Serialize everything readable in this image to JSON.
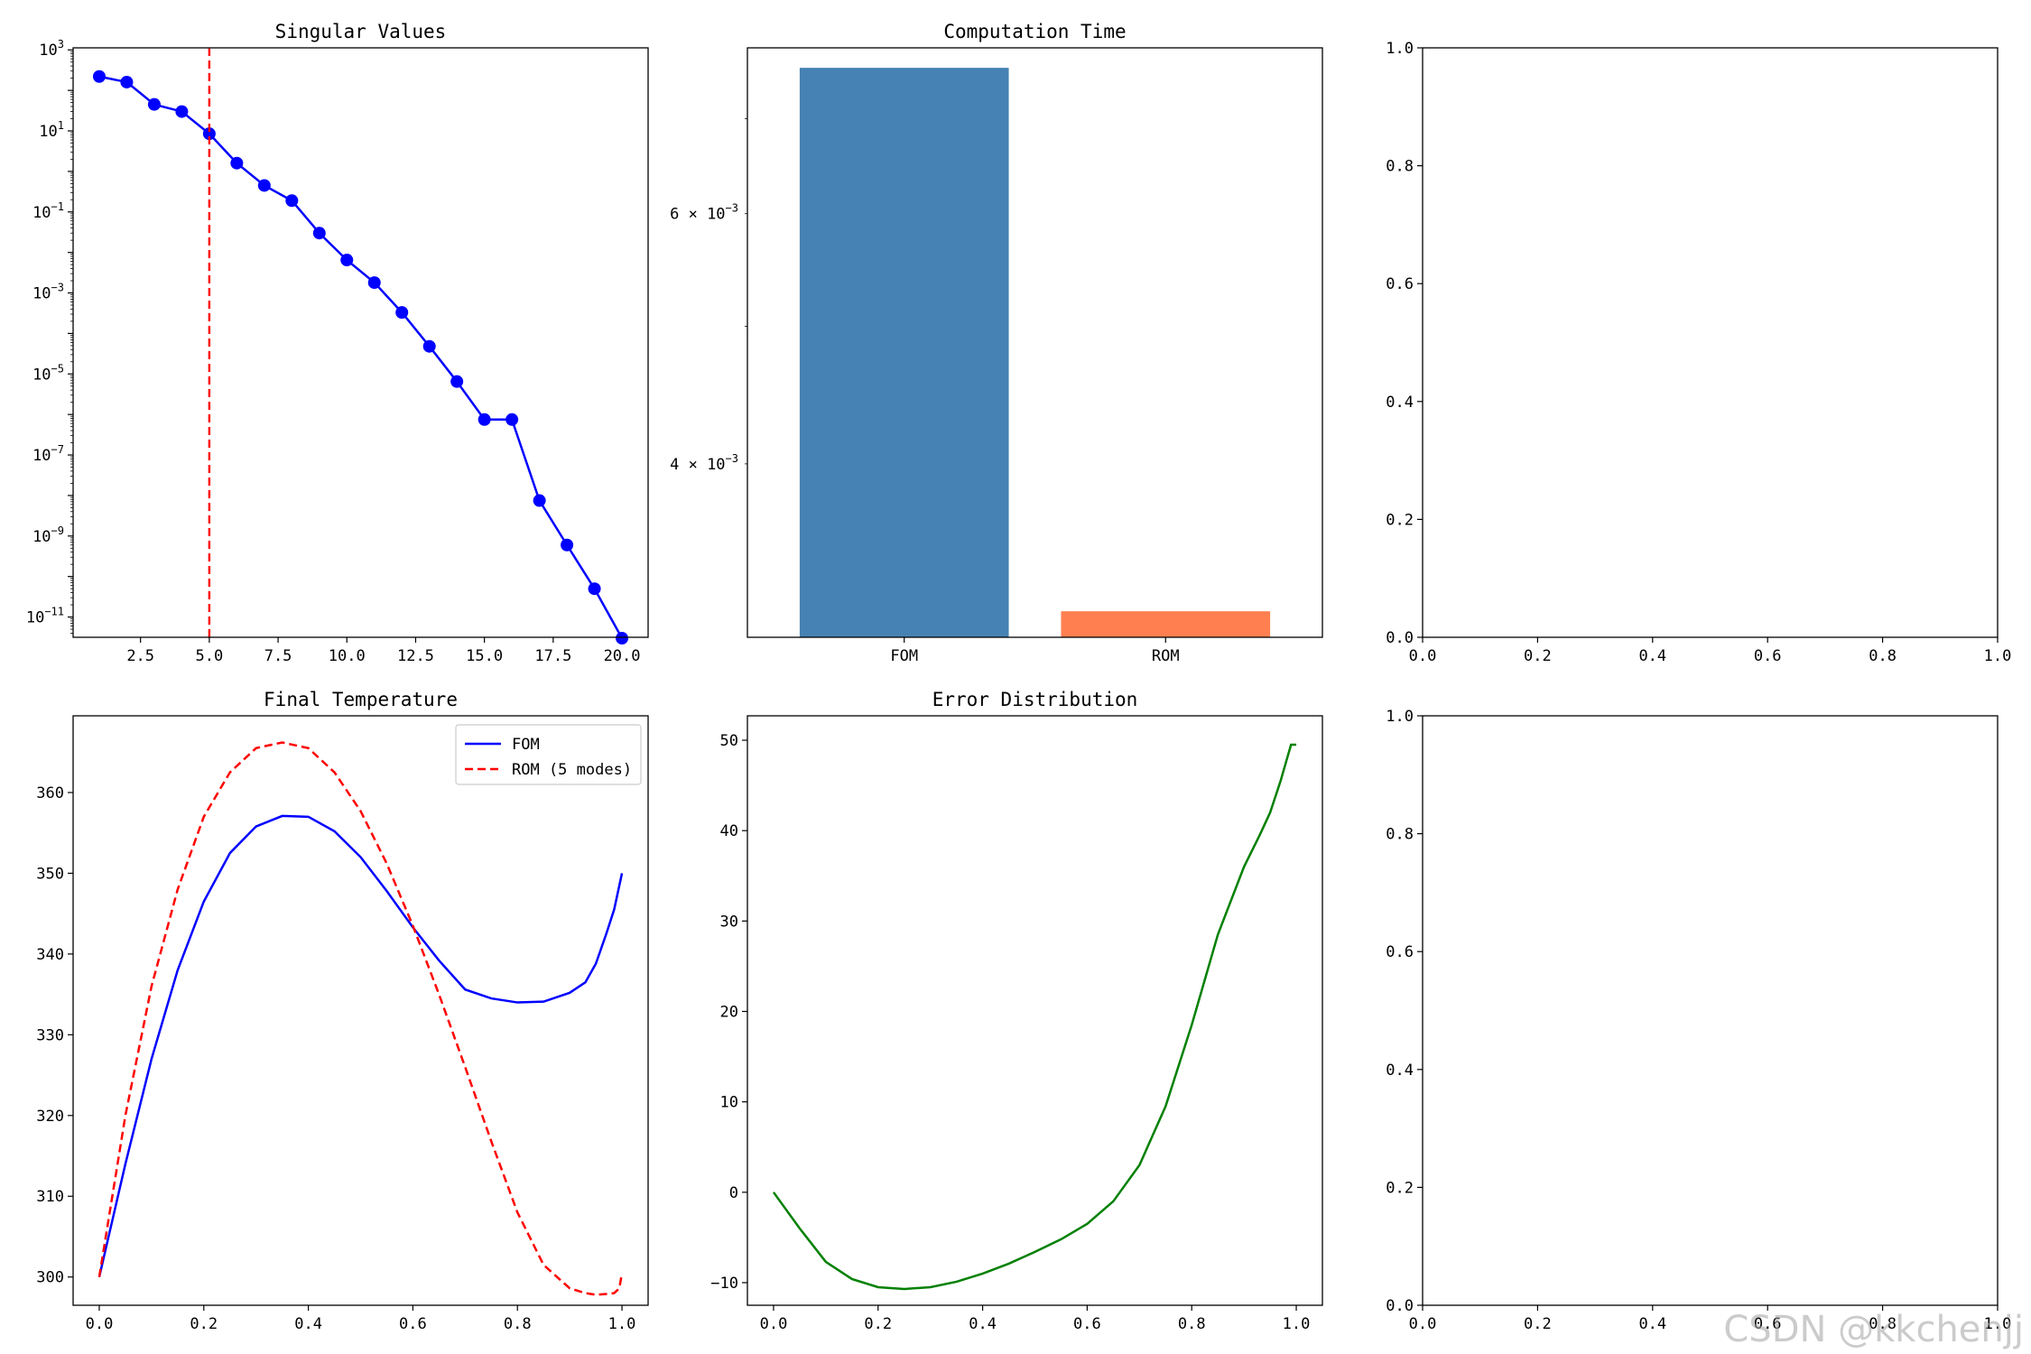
{
  "watermark": "CSDN @kkchenjj",
  "chart_data": [
    {
      "type": "line",
      "title": "Singular Values",
      "xlabel": "",
      "ylabel": "",
      "yscale": "log",
      "x": [
        1,
        2,
        3,
        4,
        5,
        6,
        7,
        8,
        9,
        10,
        11,
        12,
        13,
        14,
        15,
        16,
        17,
        18,
        19,
        20
      ],
      "series": [
        {
          "values": [
            220,
            160,
            45,
            30,
            8.5,
            1.6,
            0.45,
            0.19,
            0.03,
            0.0065,
            0.0018,
            0.00033,
            4.8e-05,
            6.5e-06,
            7.5e-07,
            7.5e-07,
            7.5e-09,
            6e-10,
            5e-11,
            3e-12
          ],
          "color": "#0000ff",
          "marker": "circle"
        }
      ],
      "annotations": [
        {
          "type": "vline",
          "x": 5,
          "color": "#ff0000",
          "style": "dashed"
        }
      ],
      "xlim": [
        0.05,
        20.95
      ],
      "xticks": [
        "2.5",
        "5.0",
        "7.5",
        "10.0",
        "12.5",
        "15.0",
        "17.5",
        "20.0"
      ],
      "ylim_log10": [
        -11.5,
        3.05
      ],
      "yticks": [
        {
          "exp": 3,
          "base": "10",
          "sup": "3"
        },
        {
          "exp": 1,
          "base": "10",
          "sup": "1"
        },
        {
          "exp": -1,
          "base": "10",
          "sup": "−1"
        },
        {
          "exp": -3,
          "base": "10",
          "sup": "−3"
        },
        {
          "exp": -5,
          "base": "10",
          "sup": "−5"
        },
        {
          "exp": -7,
          "base": "10",
          "sup": "−7"
        },
        {
          "exp": -9,
          "base": "10",
          "sup": "−9"
        },
        {
          "exp": -11,
          "base": "10",
          "sup": "−11"
        }
      ],
      "grid": false
    },
    {
      "type": "bar",
      "title": "Computation Time",
      "yscale": "log",
      "categories": [
        "FOM",
        "ROM"
      ],
      "values": [
        0.0076,
        0.00315
      ],
      "colors": [
        "#4682b4",
        "#ff7f50"
      ],
      "ylim": [
        0.00302,
        0.00785
      ],
      "yticks": [
        {
          "value": 0.006,
          "base": "6 × 10",
          "sup": "−3"
        },
        {
          "value": 0.004,
          "base": "4 × 10",
          "sup": "−3"
        }
      ],
      "grid": false
    },
    {
      "type": "line",
      "title": "",
      "empty": true,
      "xlim": [
        0,
        1
      ],
      "ylim": [
        0,
        1
      ],
      "xticks": [
        "0.0",
        "0.2",
        "0.4",
        "0.6",
        "0.8",
        "1.0"
      ],
      "yticks": [
        "0.0",
        "0.2",
        "0.4",
        "0.6",
        "0.8",
        "1.0"
      ]
    },
    {
      "type": "line",
      "title": "Final Temperature",
      "xlim": [
        -0.05,
        1.05
      ],
      "ylim": [
        296.5,
        369.5
      ],
      "xticks": [
        "0.0",
        "0.2",
        "0.4",
        "0.6",
        "0.8",
        "1.0"
      ],
      "yticks": [
        "300",
        "310",
        "320",
        "330",
        "340",
        "350",
        "360"
      ],
      "legend": "upper right",
      "x": [
        0,
        0.05,
        0.1,
        0.15,
        0.2,
        0.25,
        0.3,
        0.35,
        0.4,
        0.45,
        0.5,
        0.55,
        0.6,
        0.65,
        0.7,
        0.75,
        0.8,
        0.85,
        0.9,
        0.93,
        0.95,
        0.97,
        0.985,
        0.995,
        1.0
      ],
      "series": [
        {
          "name": "FOM",
          "color": "#0000ff",
          "style": "solid",
          "values": [
            300,
            314,
            327,
            338,
            346.5,
            352.5,
            355.8,
            357.1,
            357.0,
            355.2,
            352.0,
            347.8,
            343.3,
            339.2,
            335.6,
            334.5,
            334.0,
            334.1,
            335.2,
            336.5,
            338.8,
            342.5,
            345.5,
            348.5,
            350
          ]
        },
        {
          "name": "ROM (5 modes)",
          "color": "#ff0000",
          "style": "dashed",
          "values": [
            300,
            320,
            336,
            348,
            357,
            362.5,
            365.5,
            366.2,
            365.5,
            362.5,
            357.7,
            351.2,
            343.5,
            335.0,
            326.0,
            316.8,
            308.0,
            301.5,
            298.6,
            298.0,
            297.8,
            297.9,
            298.0,
            298.6,
            300.5
          ]
        }
      ]
    },
    {
      "type": "line",
      "title": "Error Distribution",
      "xlim": [
        -0.05,
        1.05
      ],
      "ylim": [
        -12.5,
        52.7
      ],
      "xticks": [
        "0.0",
        "0.2",
        "0.4",
        "0.6",
        "0.8",
        "1.0"
      ],
      "yticks": [
        "−10",
        "0",
        "10",
        "20",
        "30",
        "40",
        "50"
      ],
      "x": [
        0,
        0.05,
        0.1,
        0.15,
        0.2,
        0.25,
        0.3,
        0.35,
        0.4,
        0.45,
        0.5,
        0.55,
        0.6,
        0.65,
        0.7,
        0.75,
        0.8,
        0.85,
        0.9,
        0.93,
        0.95,
        0.97,
        0.98,
        0.99,
        1.0
      ],
      "series": [
        {
          "color": "#008000",
          "style": "solid",
          "values": [
            0,
            -4,
            -7.7,
            -9.6,
            -10.5,
            -10.7,
            -10.5,
            -9.9,
            -9.0,
            -7.9,
            -6.6,
            -5.2,
            -3.5,
            -1.0,
            3.0,
            9.5,
            18.5,
            28.5,
            36.0,
            39.5,
            42.0,
            45.5,
            47.5,
            49.5,
            49.5
          ]
        }
      ]
    },
    {
      "type": "line",
      "title": "",
      "empty": true,
      "xlim": [
        0,
        1
      ],
      "ylim": [
        0,
        1
      ],
      "xticks": [
        "0.0",
        "0.2",
        "0.4",
        "0.6",
        "0.8",
        "1.0"
      ],
      "yticks": [
        "0.0",
        "0.2",
        "0.4",
        "0.6",
        "0.8",
        "1.0"
      ]
    }
  ]
}
